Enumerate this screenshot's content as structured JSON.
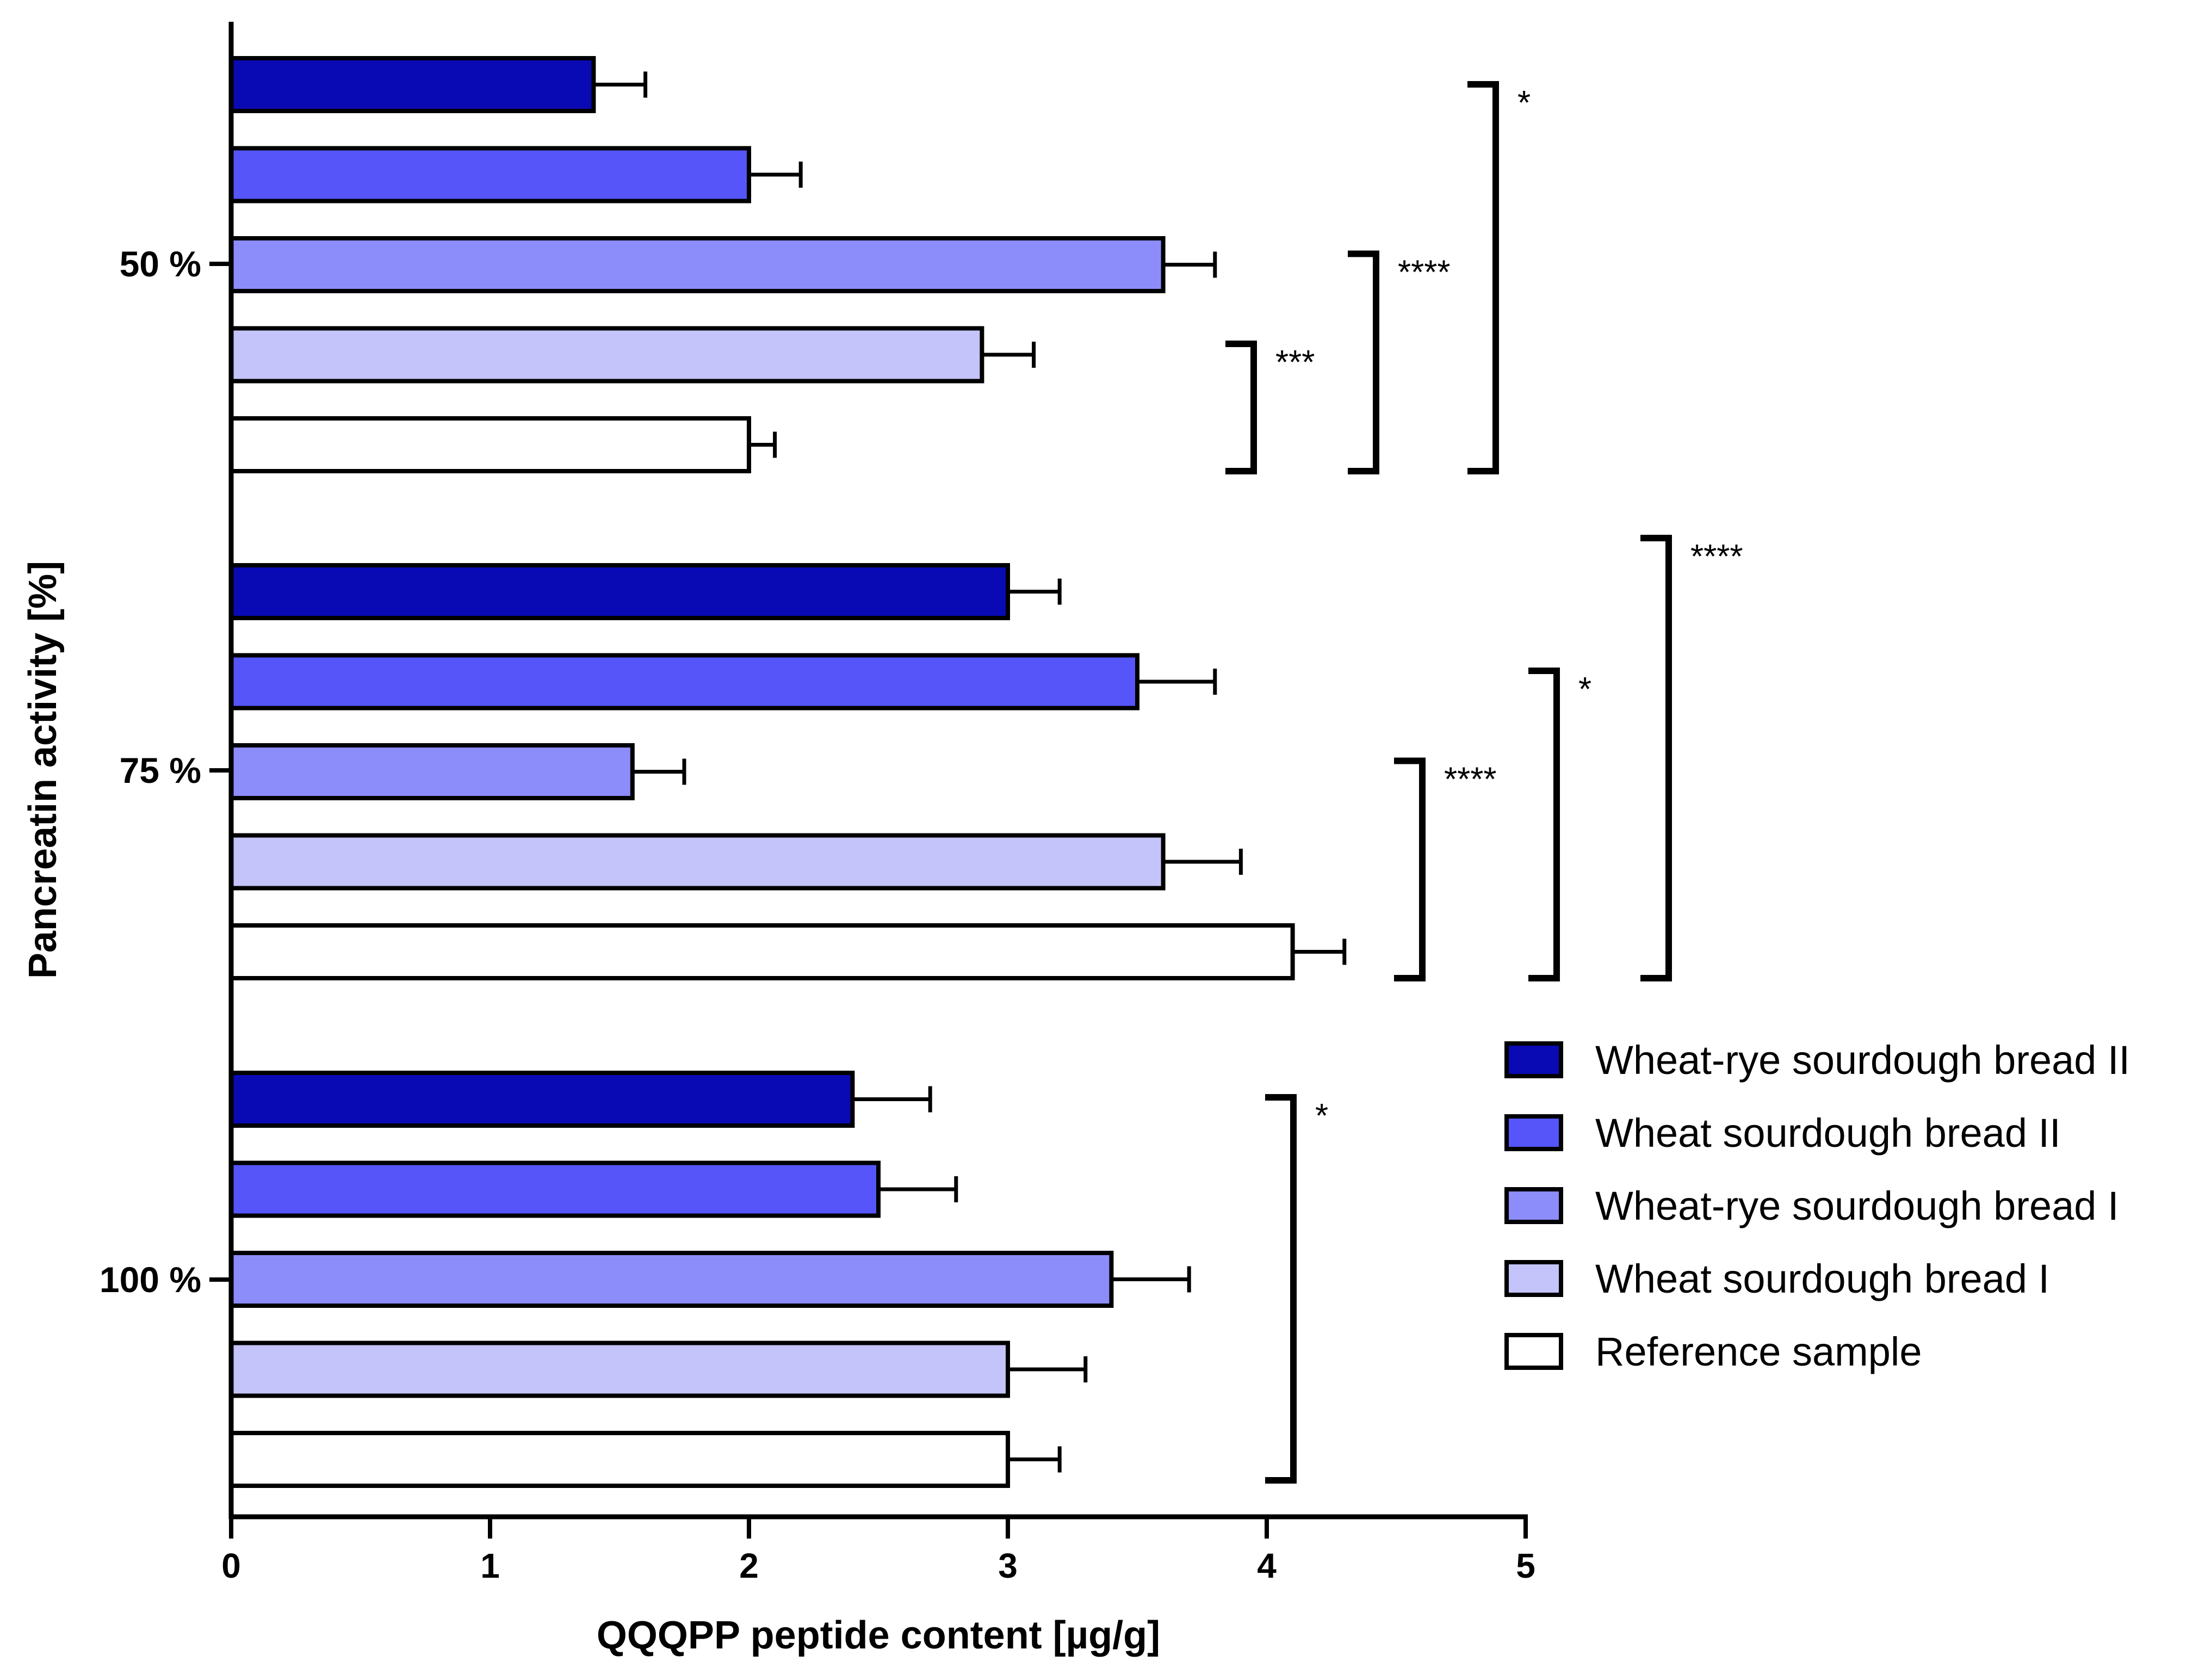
{
  "chart_data": {
    "type": "bar",
    "orientation": "horizontal",
    "xlabel": "QQQPP peptide content [µg/g]",
    "ylabel": "Pancreatin activity [%]",
    "xlim": [
      0,
      5
    ],
    "xticks": [
      "0",
      "1",
      "2",
      "3",
      "4",
      "5"
    ],
    "categories": [
      "50 %",
      "75 %",
      "100 %"
    ],
    "legend_position": "bottom-right",
    "series": [
      {
        "name": "Wheat-rye sourdough bread II",
        "color": "#0a0ab4",
        "values": [
          1.4,
          3.0,
          2.4
        ],
        "errors": [
          0.2,
          0.2,
          0.3
        ]
      },
      {
        "name": "Wheat sourdough bread II",
        "color": "#5555fa",
        "values": [
          2.0,
          3.5,
          2.5
        ],
        "errors": [
          0.2,
          0.3,
          0.3
        ]
      },
      {
        "name": "Wheat-rye sourdough bread I",
        "color": "#8c8cfa",
        "values": [
          3.6,
          1.55,
          3.4
        ],
        "errors": [
          0.2,
          0.2,
          0.3
        ]
      },
      {
        "name": "Wheat sourdough bread I",
        "color": "#c4c4fb",
        "values": [
          2.9,
          3.6,
          3.0
        ],
        "errors": [
          0.2,
          0.3,
          0.3
        ]
      },
      {
        "name": "Reference sample",
        "color": "#ffffff",
        "values": [
          2.0,
          4.1,
          3.0
        ],
        "errors": [
          0.1,
          0.2,
          0.2
        ]
      }
    ],
    "significance": [
      {
        "category": 0,
        "from_series": 3,
        "to_series": 4,
        "label": "***"
      },
      {
        "category": 0,
        "from_series": 2,
        "to_series": 4,
        "label": "****"
      },
      {
        "category": 0,
        "from_series": 0,
        "to_series": 4,
        "label": "*"
      },
      {
        "category": 1,
        "from_series": 2,
        "to_series": 4,
        "label": "****"
      },
      {
        "category": 1,
        "from_series": 1,
        "to_series": 4,
        "label": "*"
      },
      {
        "category": 1,
        "from_series": 0,
        "to_series": 4,
        "label": "****"
      },
      {
        "category": 2,
        "from_series": 0,
        "to_series": 4,
        "label": "*"
      }
    ]
  }
}
